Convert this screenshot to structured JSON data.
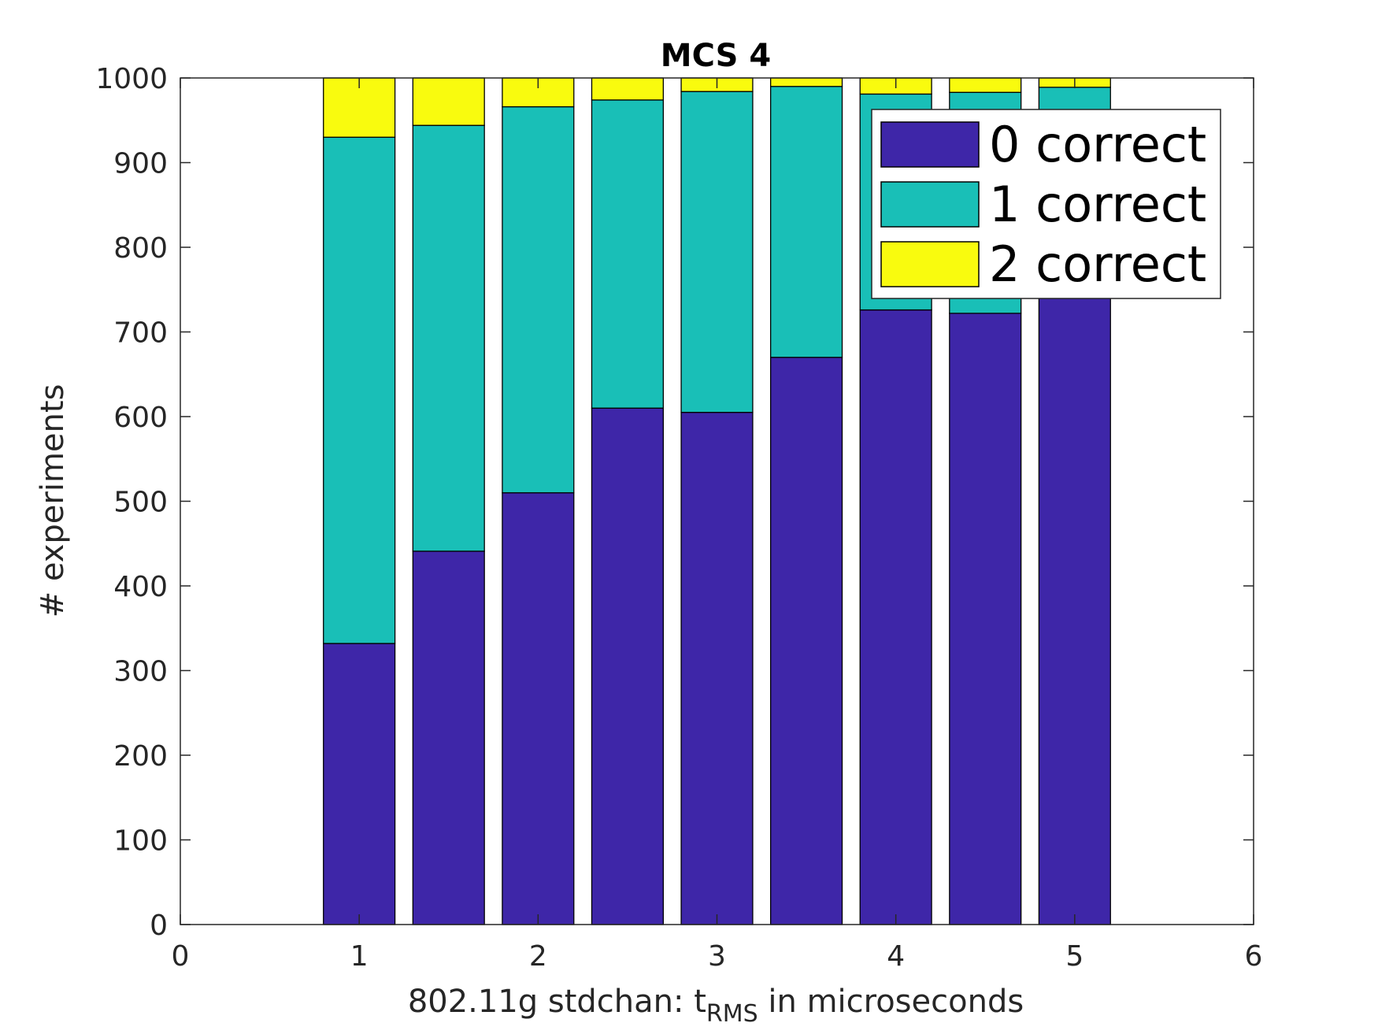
{
  "chart_data": {
    "type": "bar",
    "stacked": true,
    "title": "MCS 4",
    "xlabel": {
      "prefix": "802.11g stdchan: t",
      "subscript": "RMS",
      "suffix": " in microseconds"
    },
    "ylabel": "# experiments",
    "xlim": [
      0,
      6
    ],
    "ylim": [
      0,
      1000
    ],
    "xticks": [
      "0",
      "1",
      "2",
      "3",
      "4",
      "5",
      "6"
    ],
    "yticks": [
      "0",
      "100",
      "200",
      "300",
      "400",
      "500",
      "600",
      "700",
      "800",
      "900",
      "1000"
    ],
    "x": [
      1,
      1.5,
      2,
      2.5,
      3,
      3.5,
      4,
      4.5,
      5
    ],
    "bar_width": 0.4,
    "series": [
      {
        "name": "0 correct",
        "color": "#3e26a8",
        "values": [
          332,
          441,
          510,
          610,
          605,
          670,
          726,
          722,
          741
        ]
      },
      {
        "name": "1 correct",
        "color": "#19bfb7",
        "values": [
          598,
          503,
          456,
          364,
          379,
          320,
          255,
          261,
          248
        ]
      },
      {
        "name": "2 correct",
        "color": "#f9fb0e",
        "values": [
          70,
          56,
          34,
          26,
          16,
          10,
          19,
          17,
          11
        ]
      }
    ],
    "grid": false,
    "legend_position": "top-right"
  }
}
